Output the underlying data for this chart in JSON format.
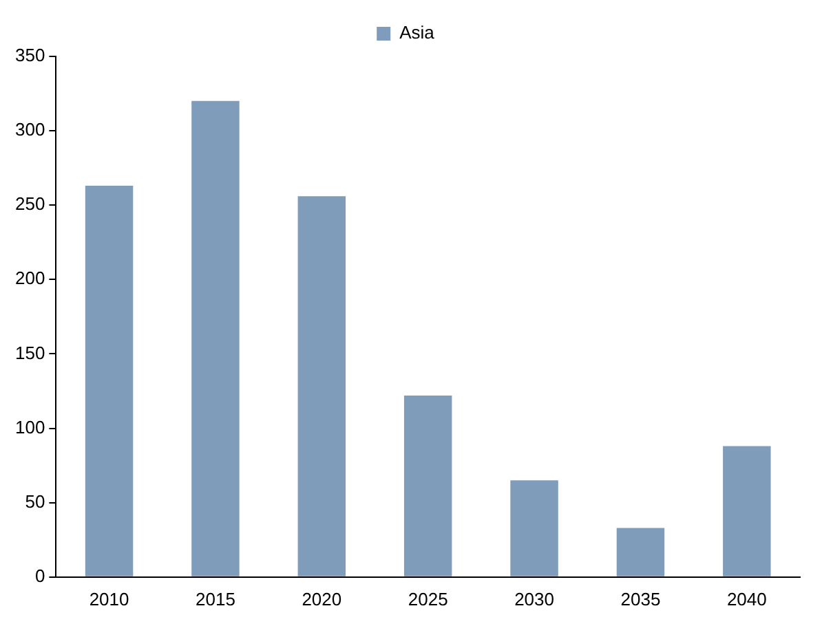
{
  "chart_data": {
    "type": "bar",
    "categories": [
      "2010",
      "2015",
      "2020",
      "2025",
      "2030",
      "2035",
      "2040"
    ],
    "series": [
      {
        "name": "Asia",
        "color": "#7f9cbb",
        "values": [
          263,
          320,
          256,
          122,
          65,
          33,
          88
        ]
      }
    ],
    "ylim": [
      0,
      350
    ],
    "yticks": [
      0,
      50,
      100,
      150,
      200,
      250,
      300,
      350
    ],
    "grid": false,
    "legend": "top"
  }
}
